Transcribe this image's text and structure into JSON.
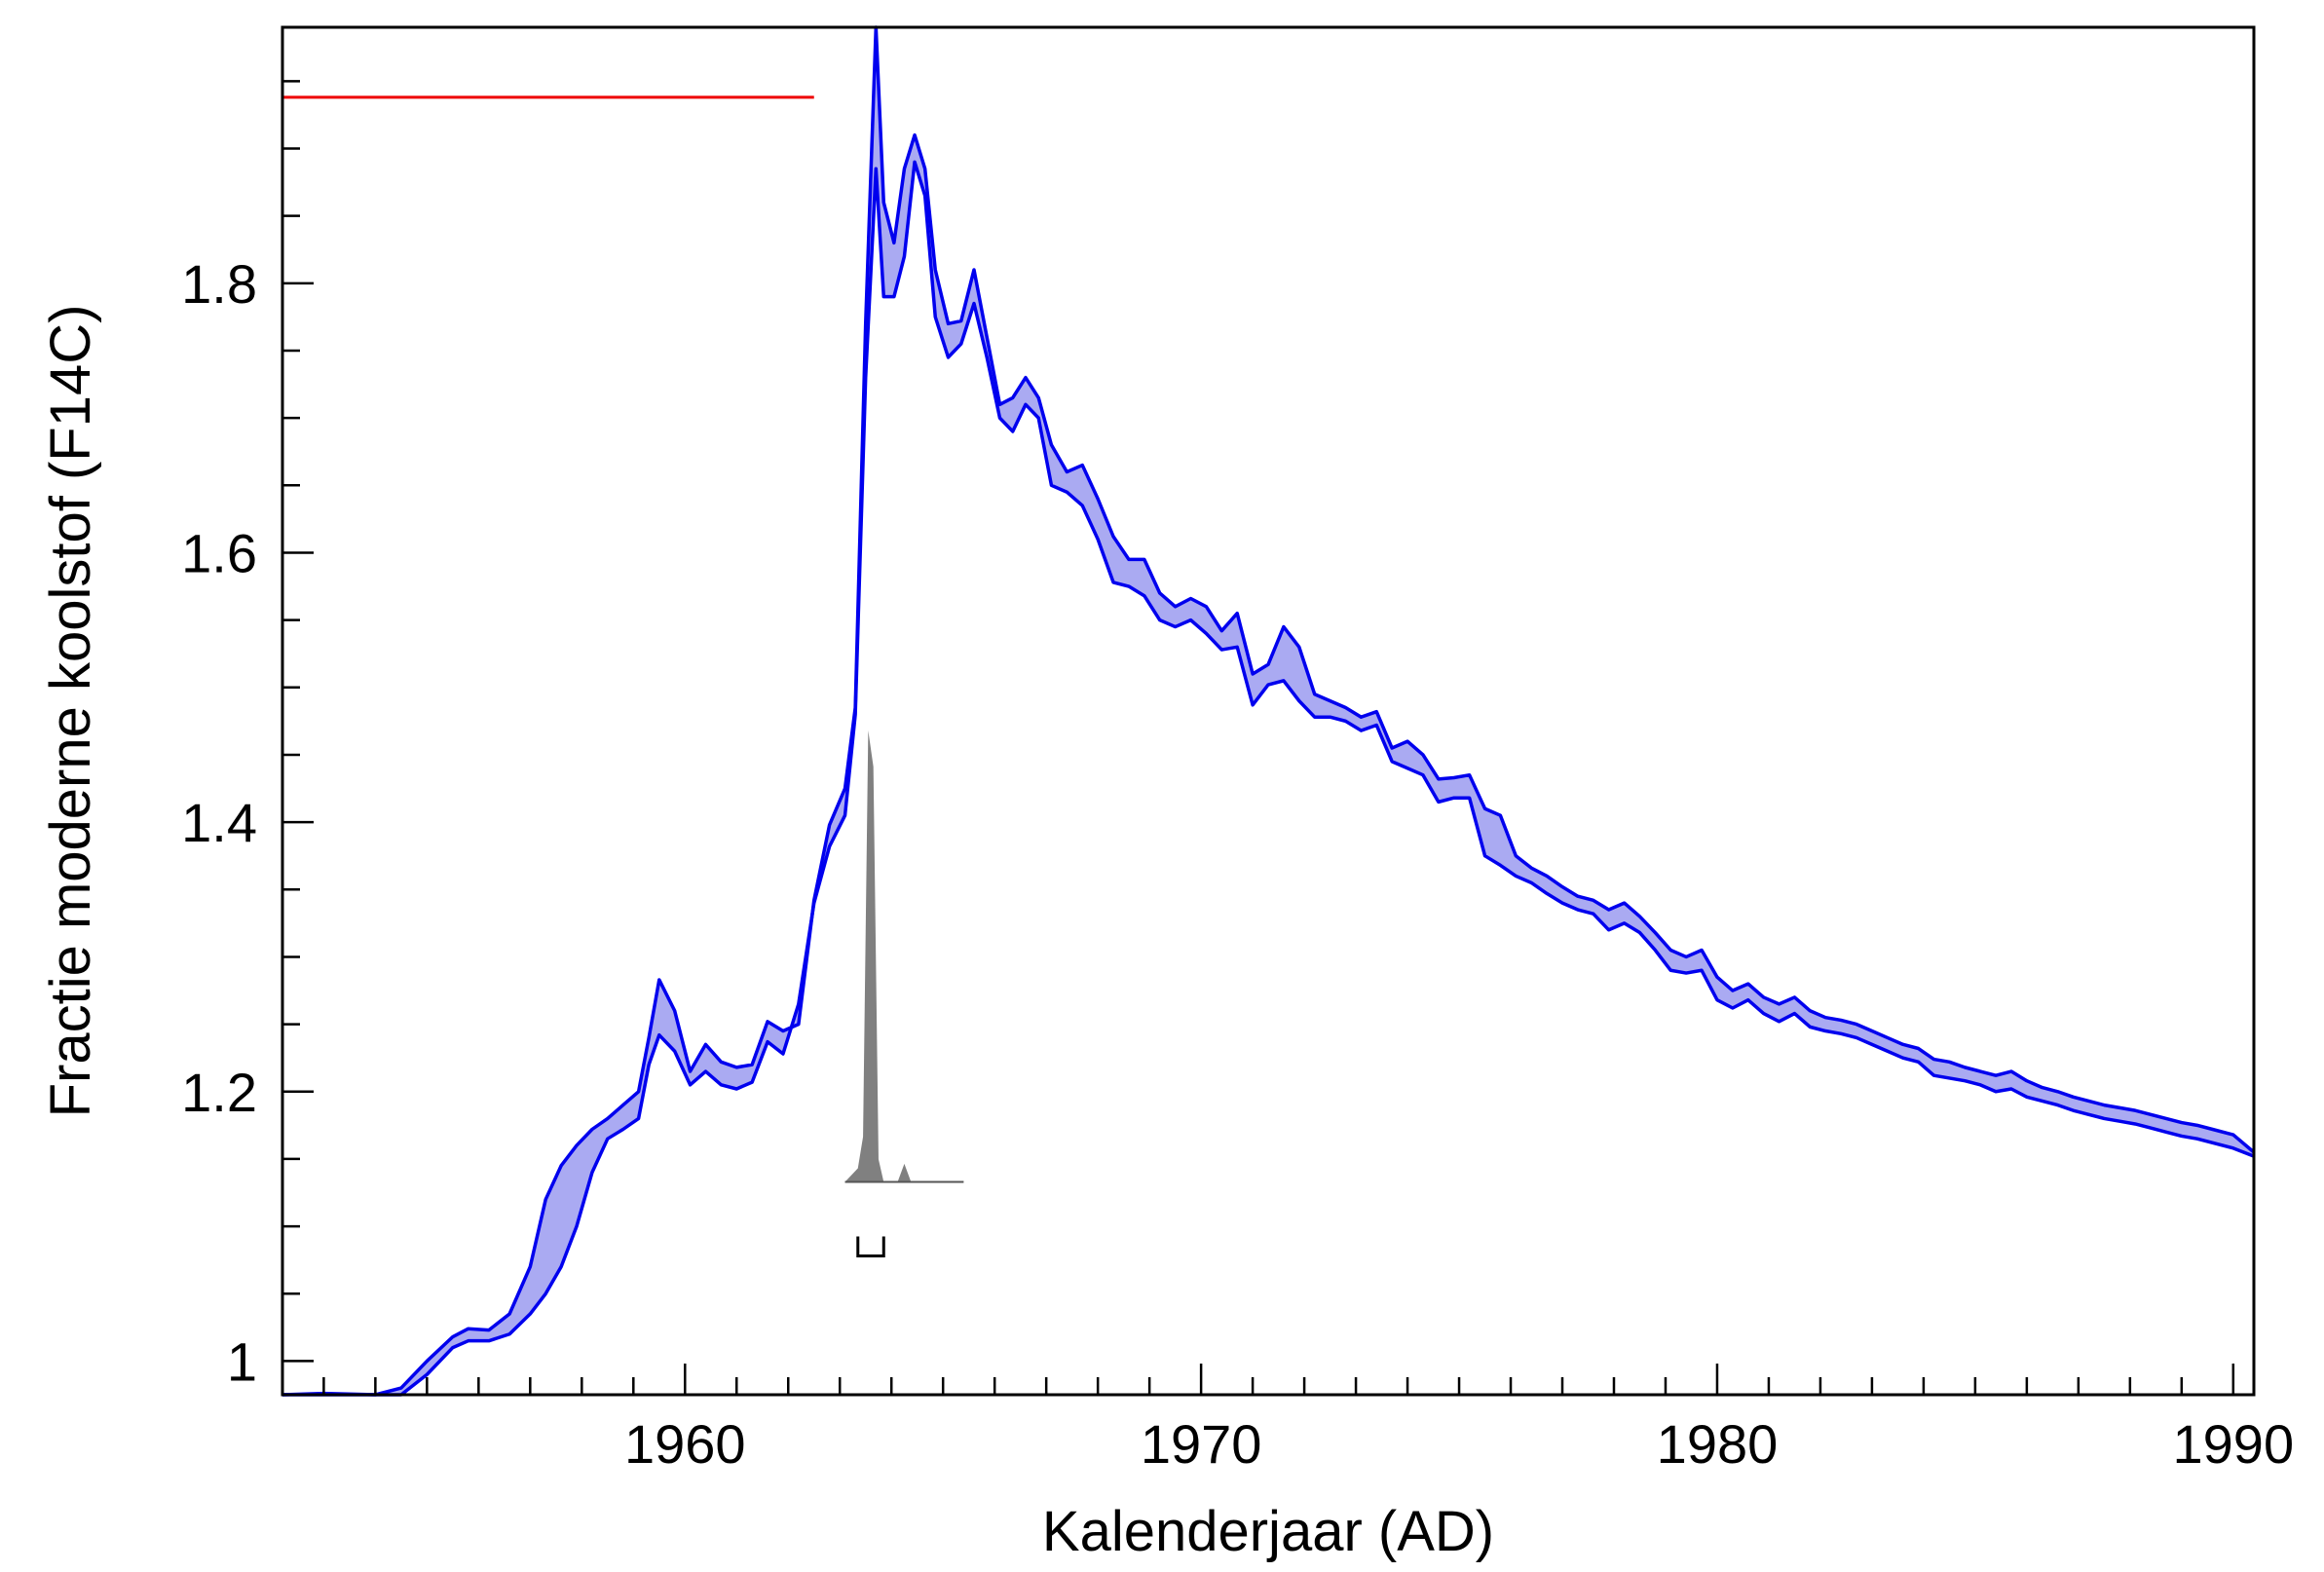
{
  "chart_data": {
    "type": "area",
    "title": "",
    "xlabel": "Kalenderjaar (AD)",
    "ylabel": "Fractie moderne koolstof (F14C)",
    "xlim": [
      1952.2,
      1990.4
    ],
    "ylim": [
      0.975,
      1.99
    ],
    "xticks": [
      1960,
      1970,
      1980,
      1990
    ],
    "yticks": [
      1,
      1.2,
      1.4,
      1.6,
      1.8
    ],
    "x_minor_step": 1,
    "y_minor_step": 0.05,
    "grid": false,
    "colors": {
      "band_stroke": "#0000ee",
      "band_fill": "#aaaaf2",
      "measurement_line": "#ee0000",
      "distribution_fill": "#808080"
    },
    "series": [
      {
        "x": [
          1952.2,
          1953,
          1954,
          1954.5,
          1955,
          1955.5,
          1955.8,
          1956.2,
          1956.6,
          1957,
          1957.3,
          1957.6,
          1957.9,
          1958.2,
          1958.5,
          1958.8,
          1959.1,
          1959.3,
          1959.5,
          1959.8,
          1960.1,
          1960.4,
          1960.7,
          1961,
          1961.3,
          1961.6,
          1961.9,
          1962.2,
          1962.5,
          1962.8,
          1963.1,
          1963.3,
          1963.5,
          1963.7,
          1963.85,
          1964.05,
          1964.25,
          1964.45,
          1964.65,
          1964.85,
          1965.1,
          1965.35,
          1965.6,
          1965.85,
          1966.1,
          1966.35,
          1966.6,
          1966.85,
          1967.1,
          1967.4,
          1967.7,
          1968,
          1968.3,
          1968.6,
          1968.9,
          1969.2,
          1969.5,
          1969.8,
          1970.1,
          1970.4,
          1970.7,
          1971,
          1971.3,
          1971.6,
          1971.9,
          1972.2,
          1972.5,
          1972.8,
          1973.1,
          1973.4,
          1973.7,
          1974,
          1974.3,
          1974.6,
          1974.9,
          1975.2,
          1975.5,
          1975.8,
          1976.1,
          1976.4,
          1976.7,
          1977,
          1977.3,
          1977.6,
          1977.9,
          1978.2,
          1978.5,
          1978.8,
          1979.1,
          1979.4,
          1979.7,
          1980,
          1980.3,
          1980.6,
          1980.9,
          1981.2,
          1981.5,
          1981.8,
          1982.1,
          1982.4,
          1982.7,
          1983,
          1983.3,
          1983.6,
          1983.9,
          1984.2,
          1984.5,
          1984.8,
          1985.1,
          1985.4,
          1985.7,
          1986,
          1986.3,
          1986.6,
          1986.9,
          1987.2,
          1987.5,
          1987.8,
          1988.1,
          1988.4,
          1988.7,
          1989,
          1989.3,
          1989.6,
          1990,
          1990.4
        ],
        "upper": [
          0.975,
          0.976,
          0.975,
          0.98,
          1.0,
          1.018,
          1.024,
          1.023,
          1.035,
          1.07,
          1.12,
          1.145,
          1.16,
          1.172,
          1.18,
          1.19,
          1.2,
          1.24,
          1.283,
          1.26,
          1.215,
          1.235,
          1.222,
          1.218,
          1.22,
          1.252,
          1.245,
          1.25,
          1.342,
          1.398,
          1.425,
          1.485,
          1.77,
          1.99,
          1.86,
          1.83,
          1.885,
          1.91,
          1.885,
          1.81,
          1.77,
          1.772,
          1.81,
          1.76,
          1.71,
          1.715,
          1.73,
          1.715,
          1.68,
          1.66,
          1.665,
          1.64,
          1.612,
          1.595,
          1.595,
          1.57,
          1.56,
          1.566,
          1.56,
          1.542,
          1.555,
          1.51,
          1.517,
          1.545,
          1.53,
          1.495,
          1.49,
          1.485,
          1.478,
          1.482,
          1.455,
          1.46,
          1.45,
          1.432,
          1.433,
          1.435,
          1.41,
          1.405,
          1.375,
          1.366,
          1.36,
          1.352,
          1.345,
          1.342,
          1.335,
          1.34,
          1.33,
          1.318,
          1.305,
          1.3,
          1.305,
          1.285,
          1.275,
          1.28,
          1.27,
          1.265,
          1.27,
          1.26,
          1.255,
          1.253,
          1.25,
          1.245,
          1.24,
          1.235,
          1.232,
          1.224,
          1.222,
          1.218,
          1.215,
          1.212,
          1.215,
          1.208,
          1.203,
          1.2,
          1.196,
          1.193,
          1.19,
          1.188,
          1.186,
          1.183,
          1.18,
          1.177,
          1.175,
          1.172,
          1.168,
          1.155
        ]
      },
      {
        "x": [
          1952.2,
          1953,
          1954,
          1954.5,
          1955,
          1955.5,
          1955.8,
          1956.2,
          1956.6,
          1957,
          1957.3,
          1957.6,
          1957.9,
          1958.2,
          1958.5,
          1958.8,
          1959.1,
          1959.3,
          1959.5,
          1959.8,
          1960.1,
          1960.4,
          1960.7,
          1961,
          1961.3,
          1961.6,
          1961.9,
          1962.2,
          1962.5,
          1962.8,
          1963.1,
          1963.3,
          1963.5,
          1963.7,
          1963.85,
          1964.05,
          1964.25,
          1964.45,
          1964.65,
          1964.85,
          1965.1,
          1965.35,
          1965.6,
          1965.85,
          1966.1,
          1966.35,
          1966.6,
          1966.85,
          1967.1,
          1967.4,
          1967.7,
          1968,
          1968.3,
          1968.6,
          1968.9,
          1969.2,
          1969.5,
          1969.8,
          1970.1,
          1970.4,
          1970.7,
          1971,
          1971.3,
          1971.6,
          1971.9,
          1972.2,
          1972.5,
          1972.8,
          1973.1,
          1973.4,
          1973.7,
          1974,
          1974.3,
          1974.6,
          1974.9,
          1975.2,
          1975.5,
          1975.8,
          1976.1,
          1976.4,
          1976.7,
          1977,
          1977.3,
          1977.6,
          1977.9,
          1978.2,
          1978.5,
          1978.8,
          1979.1,
          1979.4,
          1979.7,
          1980,
          1980.3,
          1980.6,
          1980.9,
          1981.2,
          1981.5,
          1981.8,
          1982.1,
          1982.4,
          1982.7,
          1983,
          1983.3,
          1983.6,
          1983.9,
          1984.2,
          1984.5,
          1984.8,
          1985.1,
          1985.4,
          1985.7,
          1986,
          1986.3,
          1986.6,
          1986.9,
          1987.2,
          1987.5,
          1987.8,
          1988.1,
          1988.4,
          1988.7,
          1989,
          1989.3,
          1989.6,
          1990,
          1990.4
        ],
        "lower": [
          0.975,
          0.975,
          0.975,
          0.975,
          0.99,
          1.01,
          1.015,
          1.015,
          1.02,
          1.035,
          1.05,
          1.07,
          1.1,
          1.14,
          1.165,
          1.172,
          1.18,
          1.22,
          1.242,
          1.23,
          1.205,
          1.215,
          1.205,
          1.202,
          1.207,
          1.237,
          1.228,
          1.265,
          1.34,
          1.382,
          1.405,
          1.48,
          1.73,
          1.885,
          1.79,
          1.79,
          1.82,
          1.89,
          1.865,
          1.775,
          1.745,
          1.755,
          1.785,
          1.745,
          1.7,
          1.69,
          1.71,
          1.7,
          1.65,
          1.645,
          1.635,
          1.61,
          1.578,
          1.575,
          1.568,
          1.55,
          1.545,
          1.55,
          1.54,
          1.528,
          1.53,
          1.487,
          1.502,
          1.505,
          1.49,
          1.478,
          1.478,
          1.475,
          1.468,
          1.472,
          1.445,
          1.44,
          1.435,
          1.415,
          1.418,
          1.418,
          1.375,
          1.368,
          1.36,
          1.355,
          1.347,
          1.34,
          1.335,
          1.332,
          1.32,
          1.325,
          1.318,
          1.305,
          1.29,
          1.288,
          1.29,
          1.268,
          1.262,
          1.268,
          1.258,
          1.252,
          1.258,
          1.248,
          1.245,
          1.243,
          1.24,
          1.235,
          1.23,
          1.225,
          1.222,
          1.212,
          1.21,
          1.208,
          1.205,
          1.2,
          1.202,
          1.196,
          1.193,
          1.19,
          1.186,
          1.183,
          1.18,
          1.178,
          1.176,
          1.173,
          1.17,
          1.167,
          1.165,
          1.162,
          1.158,
          1.152
        ]
      }
    ],
    "annotations": [
      {
        "type": "hline",
        "y": 1.938,
        "x_range": [
          1952.2,
          1962.5
        ],
        "color": "#ee0000"
      },
      {
        "type": "distribution",
        "baseline_y": 1.133,
        "x_range": [
          1963.1,
          1965.4
        ],
        "x": [
          1963.1,
          1963.35,
          1963.45,
          1963.55,
          1963.65,
          1963.75,
          1963.85,
          1963.95,
          1964.05,
          1964.12,
          1964.25,
          1964.38,
          1964.5,
          1965.4
        ],
        "height": [
          0,
          0.03,
          0.1,
          1.0,
          0.92,
          0.05,
          0,
          0,
          0,
          0,
          0.04,
          0,
          0,
          0
        ],
        "peak_y": 1.468
      },
      {
        "type": "range_bracket",
        "x_range": [
          1963.35,
          1963.85
        ],
        "y": 1.078
      }
    ]
  }
}
